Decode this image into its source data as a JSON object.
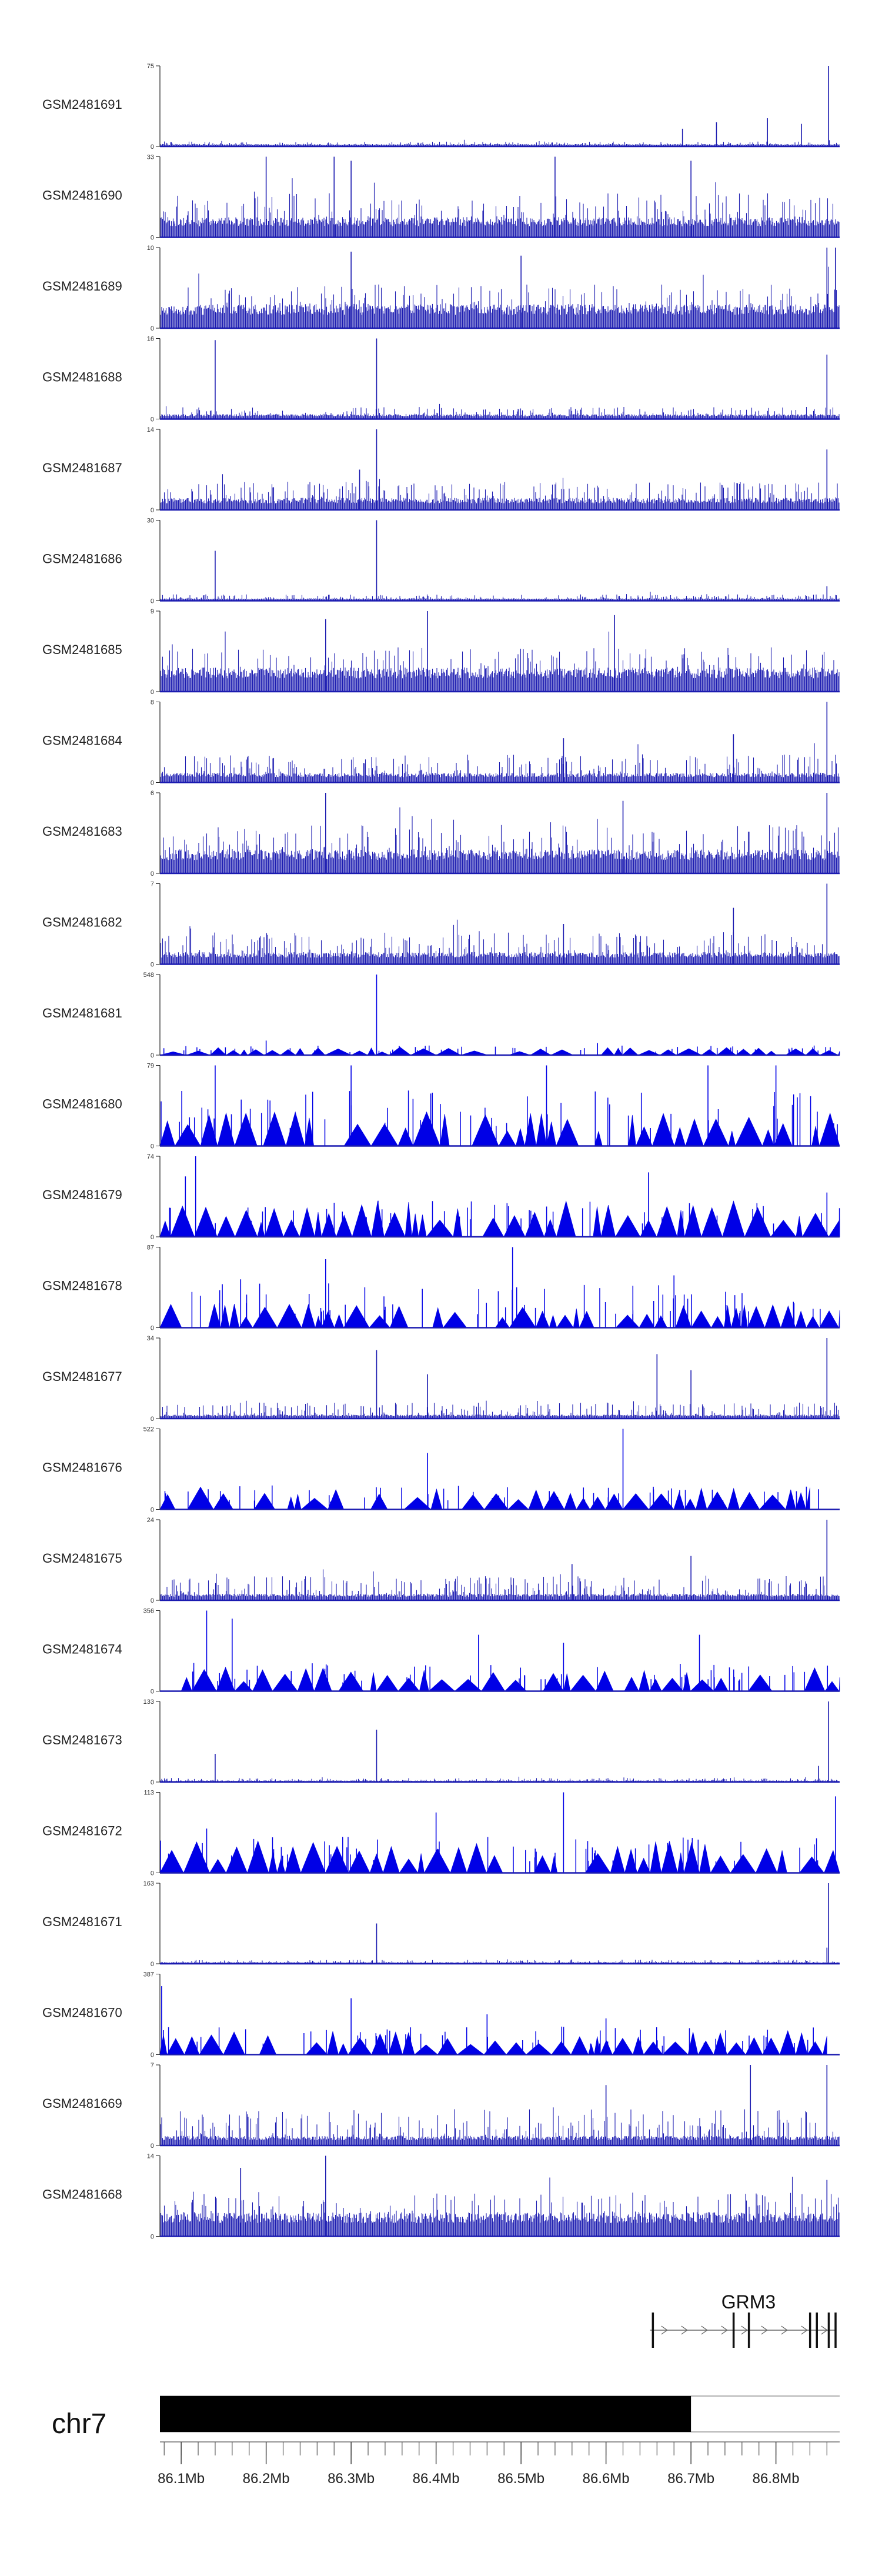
{
  "chart_data": {
    "type": "area",
    "title": "",
    "xlabel": "",
    "ylabel": "",
    "xlim": [
      86.075,
      86.875
    ],
    "tracks": [
      {
        "name": "GSM2481691",
        "ymax": "75",
        "zero": "0",
        "style": "bars",
        "base": 0.03,
        "noise": 0.06,
        "spikes": [
          [
            86.69,
            0.22
          ],
          [
            86.73,
            0.3
          ],
          [
            86.79,
            0.35
          ],
          [
            86.83,
            0.28
          ],
          [
            86.862,
            1.0
          ]
        ]
      },
      {
        "name": "GSM2481690",
        "ymax": "33",
        "zero": "0",
        "style": "bars",
        "base": 0.25,
        "noise": 0.55,
        "spikes": [
          [
            86.2,
            1.0
          ],
          [
            86.28,
            1.0
          ],
          [
            86.3,
            0.95
          ],
          [
            86.54,
            1.0
          ],
          [
            86.7,
            0.95
          ]
        ]
      },
      {
        "name": "GSM2481689",
        "ymax": "10",
        "zero": "0",
        "style": "bars",
        "base": 0.3,
        "noise": 0.55,
        "spikes": [
          [
            86.3,
            0.95
          ],
          [
            86.5,
            0.9
          ],
          [
            86.86,
            1.0
          ],
          [
            86.87,
            1.0
          ]
        ]
      },
      {
        "name": "GSM2481688",
        "ymax": "16",
        "zero": "0",
        "style": "bars",
        "base": 0.06,
        "noise": 0.15,
        "spikes": [
          [
            86.14,
            0.98
          ],
          [
            86.33,
            1.0
          ],
          [
            86.86,
            0.8
          ]
        ]
      },
      {
        "name": "GSM2481687",
        "ymax": "14",
        "zero": "0",
        "style": "bars",
        "base": 0.15,
        "noise": 0.35,
        "spikes": [
          [
            86.33,
            1.0
          ],
          [
            86.31,
            0.5
          ],
          [
            86.86,
            0.75
          ]
        ]
      },
      {
        "name": "GSM2481686",
        "ymax": "30",
        "zero": "0",
        "style": "bars",
        "base": 0.03,
        "noise": 0.08,
        "spikes": [
          [
            86.14,
            0.62
          ],
          [
            86.33,
            1.0
          ],
          [
            86.86,
            0.18
          ]
        ]
      },
      {
        "name": "GSM2481685",
        "ymax": "9",
        "zero": "0",
        "style": "bars",
        "base": 0.3,
        "noise": 0.55,
        "spikes": [
          [
            86.39,
            1.0
          ],
          [
            86.27,
            0.9
          ],
          [
            86.61,
            0.95
          ]
        ]
      },
      {
        "name": "GSM2481684",
        "ymax": "8",
        "zero": "0",
        "style": "bars",
        "base": 0.12,
        "noise": 0.35,
        "spikes": [
          [
            86.86,
            1.0
          ],
          [
            86.75,
            0.6
          ],
          [
            86.55,
            0.55
          ]
        ]
      },
      {
        "name": "GSM2481683",
        "ymax": "6",
        "zero": "0",
        "style": "bars",
        "base": 0.3,
        "noise": 0.6,
        "spikes": [
          [
            86.27,
            1.0
          ],
          [
            86.62,
            0.9
          ],
          [
            86.86,
            1.0
          ]
        ]
      },
      {
        "name": "GSM2481682",
        "ymax": "7",
        "zero": "0",
        "style": "bars",
        "base": 0.15,
        "noise": 0.4,
        "spikes": [
          [
            86.86,
            1.0
          ],
          [
            86.75,
            0.7
          ],
          [
            86.55,
            0.5
          ]
        ]
      },
      {
        "name": "GSM2481681",
        "ymax": "548",
        "zero": "0",
        "style": "peaks",
        "base": 0.1,
        "noise": 0.12,
        "spikes": [
          [
            86.33,
            1.0
          ],
          [
            86.2,
            0.18
          ],
          [
            86.59,
            0.15
          ]
        ]
      },
      {
        "name": "GSM2481680",
        "ymax": "79",
        "zero": "0",
        "style": "peaks",
        "base": 0.45,
        "noise": 0.7,
        "spikes": [
          [
            86.53,
            1.0
          ],
          [
            86.14,
            1.0
          ],
          [
            86.3,
            1.0
          ],
          [
            86.72,
            1.0
          ],
          [
            86.8,
            1.0
          ]
        ]
      },
      {
        "name": "GSM2481679",
        "ymax": "74",
        "zero": "0",
        "style": "peaks",
        "base": 0.45,
        "noise": 0.45,
        "spikes": [
          [
            86.117,
            1.0
          ],
          [
            86.105,
            0.75
          ],
          [
            86.65,
            0.8
          ],
          [
            86.86,
            0.55
          ]
        ]
      },
      {
        "name": "GSM2481678",
        "ymax": "87",
        "zero": "0",
        "style": "peaks",
        "base": 0.3,
        "noise": 0.55,
        "spikes": [
          [
            86.49,
            1.0
          ],
          [
            86.27,
            0.85
          ],
          [
            86.68,
            0.65
          ],
          [
            86.17,
            0.6
          ]
        ]
      },
      {
        "name": "GSM2481677",
        "ymax": "34",
        "zero": "0",
        "style": "bars",
        "base": 0.05,
        "noise": 0.2,
        "spikes": [
          [
            86.86,
            1.0
          ],
          [
            86.33,
            0.85
          ],
          [
            86.66,
            0.8
          ],
          [
            86.39,
            0.55
          ],
          [
            86.7,
            0.6
          ]
        ]
      },
      {
        "name": "GSM2481676",
        "ymax": "522",
        "zero": "0",
        "style": "peaks",
        "base": 0.3,
        "noise": 0.3,
        "spikes": [
          [
            86.62,
            1.0
          ],
          [
            86.39,
            0.7
          ],
          [
            86.85,
            0.25
          ]
        ],
        "xend": 86.84
      },
      {
        "name": "GSM2481675",
        "ymax": "24",
        "zero": "0",
        "style": "bars",
        "base": 0.08,
        "noise": 0.3,
        "spikes": [
          [
            86.86,
            1.0
          ],
          [
            86.7,
            0.55
          ],
          [
            86.56,
            0.45
          ]
        ]
      },
      {
        "name": "GSM2481674",
        "ymax": "356",
        "zero": "0",
        "style": "peaks",
        "base": 0.3,
        "noise": 0.35,
        "spikes": [
          [
            86.13,
            1.0
          ],
          [
            86.16,
            0.9
          ],
          [
            86.45,
            0.7
          ],
          [
            86.71,
            0.7
          ],
          [
            86.55,
            0.6
          ]
        ],
        "xstart": 86.1
      },
      {
        "name": "GSM2481673",
        "ymax": "133",
        "zero": "0",
        "style": "bars",
        "base": 0.02,
        "noise": 0.05,
        "spikes": [
          [
            86.862,
            1.0
          ],
          [
            86.33,
            0.65
          ],
          [
            86.14,
            0.35
          ],
          [
            86.85,
            0.2
          ]
        ]
      },
      {
        "name": "GSM2481672",
        "ymax": "113",
        "zero": "0",
        "style": "peaks",
        "base": 0.4,
        "noise": 0.45,
        "spikes": [
          [
            86.55,
            1.0
          ],
          [
            86.87,
            0.95
          ],
          [
            86.13,
            0.55
          ],
          [
            86.4,
            0.75
          ]
        ]
      },
      {
        "name": "GSM2481671",
        "ymax": "163",
        "zero": "0",
        "style": "bars",
        "base": 0.02,
        "noise": 0.05,
        "spikes": [
          [
            86.862,
            1.0
          ],
          [
            86.33,
            0.5
          ],
          [
            86.86,
            0.2
          ]
        ]
      },
      {
        "name": "GSM2481670",
        "ymax": "387",
        "zero": "0",
        "style": "peaks",
        "base": 0.3,
        "noise": 0.35,
        "spikes": [
          [
            86.077,
            0.85
          ],
          [
            86.3,
            0.7
          ],
          [
            86.46,
            0.5
          ],
          [
            86.6,
            0.45
          ]
        ],
        "xend": 86.86
      },
      {
        "name": "GSM2481669",
        "ymax": "7",
        "zero": "0",
        "style": "bars",
        "base": 0.12,
        "noise": 0.45,
        "spikes": [
          [
            86.77,
            1.0
          ],
          [
            86.86,
            1.0
          ],
          [
            86.6,
            0.75
          ]
        ]
      },
      {
        "name": "GSM2481668",
        "ymax": "14",
        "zero": "0",
        "style": "bars",
        "base": 0.3,
        "noise": 0.55,
        "spikes": [
          [
            86.27,
            1.0
          ],
          [
            86.17,
            0.85
          ],
          [
            86.86,
            0.7
          ]
        ]
      }
    ],
    "gene": {
      "name": "GRM3",
      "start": 86.652,
      "end": 86.87,
      "exons": [
        86.655,
        86.75,
        86.768,
        86.84,
        86.848,
        86.862,
        86.87
      ]
    },
    "ideogram": {
      "chromosome": "chr7",
      "band_start": 86.075,
      "band_end": 86.7
    },
    "axis": {
      "unit": "Mb",
      "ticks": [
        86.1,
        86.2,
        86.3,
        86.4,
        86.5,
        86.6,
        86.7,
        86.8
      ],
      "tick_labels": [
        "86.1Mb",
        "86.2Mb",
        "86.3Mb",
        "86.4Mb",
        "86.5Mb",
        "86.6Mb",
        "86.7Mb",
        "86.8Mb"
      ],
      "minor_step": 0.02
    },
    "colors": {
      "signal": "#1a1ab0",
      "peak": "#0000e6",
      "ideogram": "#000000",
      "gene": "#666666"
    }
  }
}
